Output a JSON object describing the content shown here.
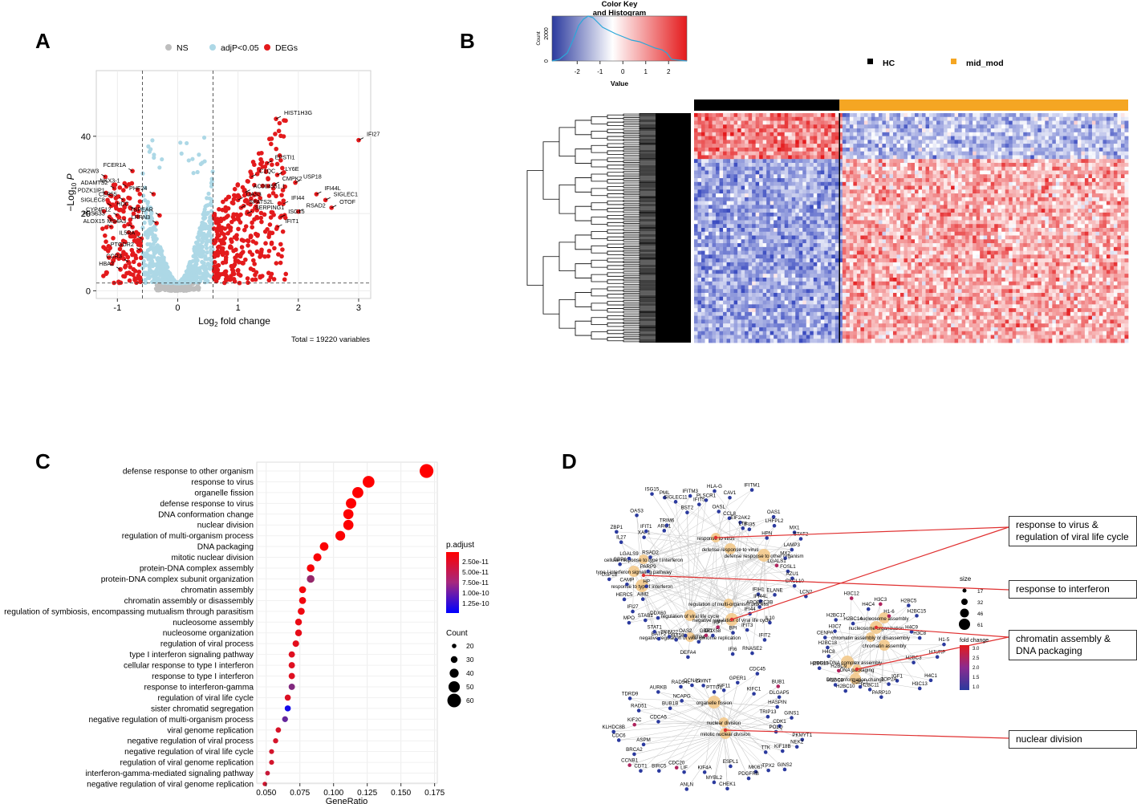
{
  "panels": {
    "a": "A",
    "b": "B",
    "c": "C",
    "d": "D"
  },
  "chart_data": [
    {
      "panel": "A",
      "type": "scatter",
      "title": "",
      "xlabel": "Log2 fold change",
      "xlabel_main": "Log",
      "xlabel_sub": "2",
      "xlabel_rest": " fold change",
      "ylabel_main": "−Log",
      "ylabel_sub": "10",
      "ylabel_rest": " P",
      "xlim": [
        -1.35,
        3.2
      ],
      "ylim": [
        -2,
        57
      ],
      "xticks": [
        -1,
        0,
        1,
        2,
        3
      ],
      "yticks": [
        0,
        20,
        40
      ],
      "vlines": [
        -0.585,
        0.585
      ],
      "hline": 2,
      "legend": [
        {
          "label": "NS",
          "color": "#bebebe"
        },
        {
          "label": "adjP<0.05",
          "color": "#add8e6"
        },
        {
          "label": "DEGs",
          "color": "#e31a1c"
        }
      ],
      "caption": "Total = 19220 variables",
      "labeled_genes": [
        {
          "name": "HIST1H3G",
          "x": 1.63,
          "y": 44.5
        },
        {
          "name": "IFI27",
          "x": 3.0,
          "y": 39.0
        },
        {
          "name": "EPSTI1",
          "x": 1.48,
          "y": 33.0
        },
        {
          "name": "LY6E",
          "x": 1.65,
          "y": 30.0
        },
        {
          "name": "C1QC",
          "x": 1.22,
          "y": 29.5
        },
        {
          "name": "CMPK2",
          "x": 1.6,
          "y": 27.5
        },
        {
          "name": "USP18",
          "x": 1.95,
          "y": 28.0
        },
        {
          "name": "IFI44L",
          "x": 2.3,
          "y": 25.0
        },
        {
          "name": "SIGLEC1",
          "x": 2.45,
          "y": 23.5
        },
        {
          "name": "OTOF",
          "x": 2.55,
          "y": 21.5
        },
        {
          "name": "RSAD2",
          "x": 2.0,
          "y": 20.5
        },
        {
          "name": "IFI44",
          "x": 1.75,
          "y": 22.5
        },
        {
          "name": "ISG15",
          "x": 1.7,
          "y": 19.0
        },
        {
          "name": "IFIT1",
          "x": 1.65,
          "y": 16.5
        },
        {
          "name": "OAS3",
          "x": 1.0,
          "y": 23.5
        },
        {
          "name": "AC004551.1",
          "x": 1.12,
          "y": 25.5
        },
        {
          "name": "SPATS2L",
          "x": 1.05,
          "y": 21.5
        },
        {
          "name": "SERPING1",
          "x": 1.15,
          "y": 20.0
        },
        {
          "name": "FCER1A",
          "x": -0.75,
          "y": 31.0
        },
        {
          "name": "OR2W3",
          "x": -1.2,
          "y": 29.5
        },
        {
          "name": "ADAMTS2",
          "x": -1.05,
          "y": 26.5
        },
        {
          "name": "NKX3-1",
          "x": -0.85,
          "y": 27.0
        },
        {
          "name": "PHF24",
          "x": -0.4,
          "y": 25.0
        },
        {
          "name": "PDZK1IP1",
          "x": -1.1,
          "y": 24.5
        },
        {
          "name": "CEP55",
          "x": -0.9,
          "y": 23.5
        },
        {
          "name": "SIGLEC8",
          "x": -1.1,
          "y": 22.0
        },
        {
          "name": "HDC",
          "x": -0.7,
          "y": 21.0
        },
        {
          "name": "TSPEAR",
          "x": -0.3,
          "y": 19.5
        },
        {
          "name": "PRSS33",
          "x": -1.1,
          "y": 18.5
        },
        {
          "name": "CYP4F12",
          "x": -1.0,
          "y": 19.5
        },
        {
          "name": "LRRN3",
          "x": -0.35,
          "y": 17.5
        },
        {
          "name": "ALOX15",
          "x": -1.1,
          "y": 16.5
        },
        {
          "name": "MS4A3",
          "x": -0.75,
          "y": 16.5
        },
        {
          "name": "IL5RA",
          "x": -0.6,
          "y": 13.5
        },
        {
          "name": "PTGDR2",
          "x": -0.62,
          "y": 10.5
        },
        {
          "name": "CCR3",
          "x": -0.82,
          "y": 7.5
        },
        {
          "name": "HBA2",
          "x": -0.95,
          "y": 5.5
        }
      ]
    },
    {
      "panel": "B",
      "type": "heatmap",
      "title": "Color Key\nand Histogram",
      "title_line1": "Color Key",
      "title_line2": "and Histogram",
      "key_xlabel": "Value",
      "key_ylabel": "Count",
      "key_xticks": [
        "-2",
        "-1",
        "0",
        "1",
        "2"
      ],
      "key_yticks": [
        "0",
        "2000"
      ],
      "legend": [
        {
          "label": "HC",
          "color": "#000000"
        },
        {
          "label": "mid_mod",
          "color": "#f5a623"
        }
      ],
      "group_split_fraction": 0.335,
      "colors": {
        "low": "#3b4cc0",
        "mid": "#ffffff",
        "high": "#e41a1c"
      }
    },
    {
      "panel": "C",
      "type": "scatter",
      "xlabel": "GeneRatio",
      "xlim": [
        0.043,
        0.177
      ],
      "xticks": [
        "0.050",
        "0.075",
        "0.100",
        "0.125",
        "0.150",
        "0.175"
      ],
      "xtick_values": [
        0.05,
        0.075,
        0.1,
        0.125,
        0.15,
        0.175
      ],
      "size_legend": {
        "title": "Count",
        "values": [
          20,
          30,
          40,
          50,
          60
        ]
      },
      "color_legend": {
        "title": "p.adjust",
        "ticks": [
          "2.50e-11",
          "5.00e-11",
          "7.50e-11",
          "1.00e-10",
          "1.25e-10"
        ]
      },
      "terms": [
        {
          "label": "defense response to other organism",
          "ratio": 0.169,
          "count": 61,
          "padj": 2e-12
        },
        {
          "label": "response to virus",
          "ratio": 0.126,
          "count": 52,
          "padj": 2.2e-12
        },
        {
          "label": "organelle fission",
          "ratio": 0.118,
          "count": 49,
          "padj": 2.5e-12
        },
        {
          "label": "defense response to virus",
          "ratio": 0.113,
          "count": 46,
          "padj": 2.5e-12
        },
        {
          "label": "DNA conformation change",
          "ratio": 0.111,
          "count": 45,
          "padj": 2.8e-12
        },
        {
          "label": "nuclear division",
          "ratio": 0.111,
          "count": 45,
          "padj": 3e-12
        },
        {
          "label": "regulation of multi-organism process",
          "ratio": 0.105,
          "count": 43,
          "padj": 3.5e-12
        },
        {
          "label": "DNA packaging",
          "ratio": 0.093,
          "count": 38,
          "padj": 4e-12
        },
        {
          "label": "mitotic nuclear division",
          "ratio": 0.088,
          "count": 36,
          "padj": 5e-12
        },
        {
          "label": "protein-DNA complex assembly",
          "ratio": 0.083,
          "count": 34,
          "padj": 6e-12
        },
        {
          "label": "protein-DNA complex subunit organization",
          "ratio": 0.083,
          "count": 34,
          "padj": 5.5e-11
        },
        {
          "label": "chromatin assembly",
          "ratio": 0.077,
          "count": 31,
          "padj": 8e-12
        },
        {
          "label": "chromatin assembly or disassembly",
          "ratio": 0.077,
          "count": 31,
          "padj": 9e-12
        },
        {
          "label": "regulation of symbiosis, encompassing mutualism through parasitism",
          "ratio": 0.076,
          "count": 31,
          "padj": 1e-11
        },
        {
          "label": "nucleosome assembly",
          "ratio": 0.074,
          "count": 30,
          "padj": 1.2e-11
        },
        {
          "label": "nucleosome organization",
          "ratio": 0.074,
          "count": 30,
          "padj": 1.4e-11
        },
        {
          "label": "regulation of viral process",
          "ratio": 0.072,
          "count": 29,
          "padj": 1.6e-11
        },
        {
          "label": "type I interferon signaling pathway",
          "ratio": 0.069,
          "count": 28,
          "padj": 1.8e-11
        },
        {
          "label": "cellular response to type I interferon",
          "ratio": 0.069,
          "count": 28,
          "padj": 1.8e-11
        },
        {
          "label": "response to type I interferon",
          "ratio": 0.069,
          "count": 28,
          "padj": 1.8e-11
        },
        {
          "label": "response to interferon-gamma",
          "ratio": 0.069,
          "count": 28,
          "padj": 6.5e-11
        },
        {
          "label": "regulation of viral life cycle",
          "ratio": 0.066,
          "count": 27,
          "padj": 2e-11
        },
        {
          "label": "sister chromatid segregation",
          "ratio": 0.066,
          "count": 27,
          "padj": 1.2e-10
        },
        {
          "label": "negative regulation of multi-organism process",
          "ratio": 0.064,
          "count": 26,
          "padj": 8e-11
        },
        {
          "label": "viral genome replication",
          "ratio": 0.059,
          "count": 24,
          "padj": 2.2e-11
        },
        {
          "label": "negative regulation of viral process",
          "ratio": 0.057,
          "count": 23,
          "padj": 2.3e-11
        },
        {
          "label": "negative regulation of viral life cycle",
          "ratio": 0.054,
          "count": 22,
          "padj": 2.4e-11
        },
        {
          "label": "regulation of viral genome replication",
          "ratio": 0.054,
          "count": 22,
          "padj": 2.4e-11
        },
        {
          "label": "interferon-gamma-mediated signaling pathway",
          "ratio": 0.051,
          "count": 21,
          "padj": 3e-11
        },
        {
          "label": "negative regulation of viral genome replication",
          "ratio": 0.049,
          "count": 20,
          "padj": 2.5e-11
        }
      ]
    },
    {
      "panel": "D",
      "type": "diagram",
      "size_legend": {
        "title": "size",
        "values": [
          "17",
          "32",
          "46",
          "61"
        ]
      },
      "color_legend": {
        "title": "fold change",
        "ticks": [
          "3.0",
          "2.5",
          "2.0",
          "1.5",
          "1.0"
        ]
      },
      "callouts": [
        {
          "line1": "response to virus &",
          "line2": "regulation of viral life cycle"
        },
        {
          "line1": "response to interferon",
          "line2": ""
        },
        {
          "line1": "chromatin assembly &",
          "line2": "DNA packaging"
        },
        {
          "line1": "nuclear division",
          "line2": ""
        }
      ],
      "hubs": [
        "response to virus",
        "defense response to virus",
        "defense response to other organism",
        "cellular response to type I interferon",
        "type I interferon signaling pathway",
        "response to type I interferon",
        "regulation of multi-organism process",
        "regulation of viral life cycle",
        "negative regulation of viral life cycle",
        "negative regulation of viral genome replication",
        "nucleosome assembly",
        "nucleosome organization",
        "chromatin assembly or disassembly",
        "chromatin assembly",
        "protein-DNA complex assembly",
        "DNA packaging",
        "DNA conformation change",
        "organelle fission",
        "nuclear division",
        "mitotic nuclear division"
      ],
      "genes": [
        "FOSL1",
        "AZU1",
        "CXCL10",
        "LCN2",
        "ELANE",
        "IFIH1",
        "IFI44L",
        "APOBEC3B",
        "IL10",
        "IFI44",
        "IFIT2",
        "IFIT3",
        "RNASE2",
        "BPI",
        "IFI6",
        "IRF7",
        "DDX58",
        "GBP1",
        "RTP4",
        "DEFA4",
        "OAS2",
        "DHX58",
        "TRIM22",
        "BATF2",
        "STAT1",
        "DDX60",
        "STAB1",
        "MPO",
        "IFI27",
        "AIM2",
        "HERC5",
        "HP",
        "CAMP",
        "USP18",
        "PARP9",
        "GBP6",
        "LGALS9",
        "RSAD2",
        "IL27",
        "ZBP1",
        "XAF1",
        "IFIT1",
        "OAS3",
        "ARG1",
        "TRIM6",
        "ISG15",
        "PML",
        "SIGLEC11",
        "BST2",
        "IFITM3",
        "IFIT5",
        "PLSCR1",
        "HLA-G",
        "OASL",
        "CAV1",
        "CCL8",
        "IFITM1",
        "EIF2AK2",
        "LTF",
        "IFI35",
        "OAS1",
        "LHFPL2",
        "HPN",
        "MX1",
        "STAT2",
        "LAMP3",
        "MX2",
        "LGALS1",
        "IGF1",
        "TOP2A",
        "PARP10",
        "H2BC11",
        "H2BC7",
        "H2BC10",
        "H2BC8",
        "H2BC9",
        "H2BC13",
        "H4C8",
        "H2BC18",
        "CENPA",
        "H3C7",
        "H2BC17",
        "H2BC14",
        "H3C12",
        "H4C4",
        "H3C3",
        "H1-6",
        "H2BC5",
        "H2BC15",
        "H4C9",
        "H3C8",
        "H1-5",
        "HJURP",
        "H2BC3",
        "H4C1",
        "H3C13",
        "LIF",
        "CDC20",
        "BIRC5",
        "CDT1",
        "CCNB1",
        "BRCA2",
        "ASPM",
        "CDC6",
        "KLHDC8B",
        "KIF2C",
        "CDCA5",
        "RAD51",
        "TDRD9",
        "BUB1B",
        "AURKB",
        "NCAPG",
        "RAD54L",
        "CCNA1",
        "ZWINT",
        "PTTG1",
        "KIF11",
        "GPER1",
        "CDC45",
        "KIFC1",
        "BUB1",
        "DLGAP5",
        "HASPIN",
        "TRIP13",
        "GINS1",
        "CDK1",
        "POLQ",
        "PKMYT1",
        "NEK2",
        "KIF18B",
        "TTK",
        "GINS2",
        "TPX2",
        "MKI67",
        "PDGFRB",
        "ESPL1",
        "CHEK1",
        "MYBL2",
        "KIF4A",
        "ANLN"
      ]
    }
  ]
}
